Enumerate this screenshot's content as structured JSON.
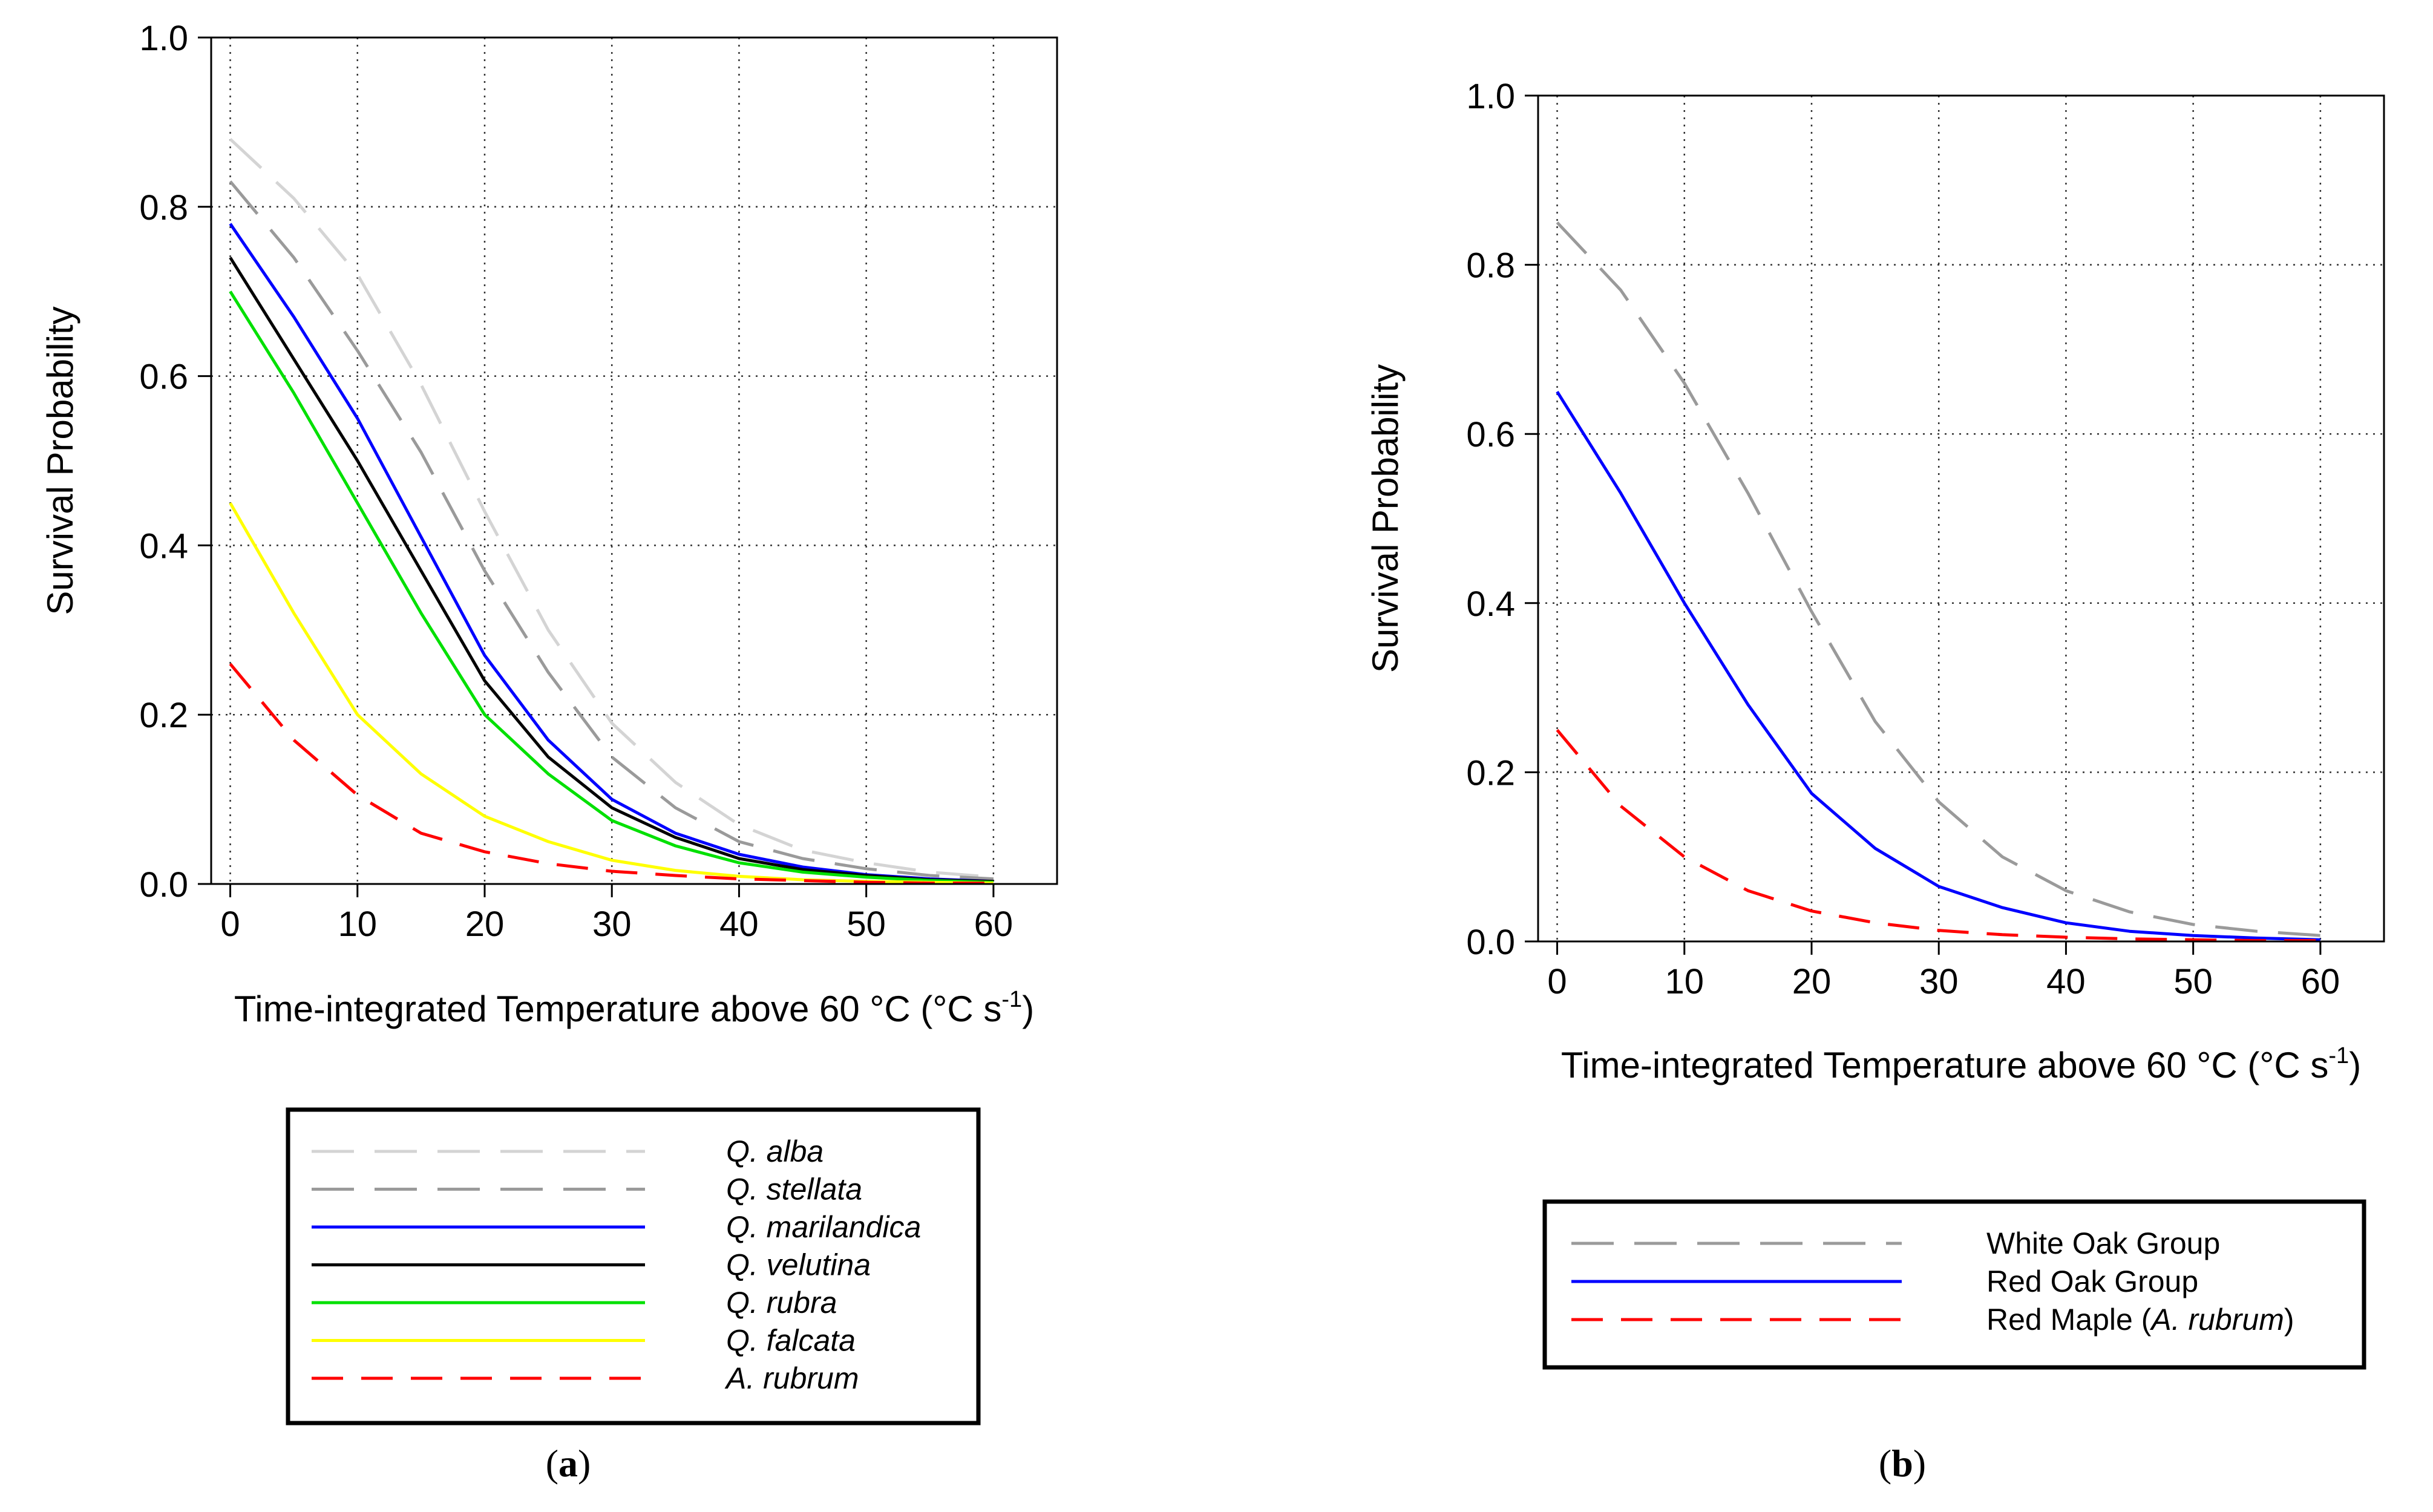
{
  "chart_data": [
    {
      "panel": "a",
      "panel_label": {
        "open": "(",
        "letter": "a",
        "close": ")"
      },
      "type": "line",
      "title": "",
      "xlabel": "Time-integrated Temperature above 60 °C (°C s",
      "xlabel_sup": "-1",
      "xlabel_close": ")",
      "ylabel": "Survival Probability",
      "xlim": [
        -1.5,
        65
      ],
      "ylim": [
        0,
        1
      ],
      "xticks": [
        "0",
        "10",
        "20",
        "30",
        "40",
        "50",
        "60"
      ],
      "yticks": [
        "0.0",
        "0.2",
        "0.4",
        "0.6",
        "0.8",
        "1.0"
      ],
      "grid": true,
      "legend_position": "below",
      "x": [
        0,
        5,
        10,
        15,
        20,
        25,
        30,
        35,
        40,
        45,
        50,
        55,
        60
      ],
      "series": [
        {
          "name": "Q. alba",
          "color": "#d4d4d4",
          "dash": "long-dash",
          "values": [
            0.88,
            0.81,
            0.72,
            0.59,
            0.44,
            0.3,
            0.19,
            0.12,
            0.07,
            0.04,
            0.025,
            0.014,
            0.008
          ]
        },
        {
          "name": "Q. stellata",
          "color": "#9a9a9a",
          "dash": "long-dash",
          "values": [
            0.83,
            0.74,
            0.63,
            0.51,
            0.37,
            0.25,
            0.15,
            0.09,
            0.05,
            0.03,
            0.018,
            0.01,
            0.006
          ]
        },
        {
          "name": "Q. marilandica",
          "color": "#0000ff",
          "dash": "solid",
          "values": [
            0.78,
            0.67,
            0.55,
            0.41,
            0.27,
            0.17,
            0.1,
            0.06,
            0.035,
            0.02,
            0.011,
            0.006,
            0.003
          ]
        },
        {
          "name": "Q. velutina",
          "color": "#000000",
          "dash": "solid",
          "values": [
            0.74,
            0.62,
            0.5,
            0.37,
            0.24,
            0.15,
            0.09,
            0.055,
            0.03,
            0.017,
            0.01,
            0.005,
            0.003
          ]
        },
        {
          "name": "Q. rubra",
          "color": "#00e000",
          "dash": "solid",
          "values": [
            0.7,
            0.58,
            0.45,
            0.32,
            0.2,
            0.13,
            0.075,
            0.045,
            0.025,
            0.014,
            0.008,
            0.004,
            0.002
          ]
        },
        {
          "name": "Q. falcata",
          "color": "#ffff00",
          "dash": "solid",
          "values": [
            0.45,
            0.32,
            0.2,
            0.13,
            0.08,
            0.05,
            0.028,
            0.016,
            0.009,
            0.005,
            0.003,
            0.002,
            0.001
          ]
        },
        {
          "name": "A. rubrum",
          "color": "#ff0000",
          "dash": "dash",
          "values": [
            0.26,
            0.17,
            0.105,
            0.06,
            0.038,
            0.024,
            0.015,
            0.01,
            0.006,
            0.004,
            0.002,
            0.001,
            0.001
          ]
        }
      ]
    },
    {
      "panel": "b",
      "panel_label": {
        "open": "(",
        "letter": "b",
        "close": ")"
      },
      "type": "line",
      "title": "",
      "xlabel": "Time-integrated Temperature above 60 °C (°C s",
      "xlabel_sup": "-1",
      "xlabel_close": ")",
      "ylabel": "Survival Probability",
      "xlim": [
        -1.5,
        65
      ],
      "ylim": [
        0,
        1
      ],
      "xticks": [
        "0",
        "10",
        "20",
        "30",
        "40",
        "50",
        "60"
      ],
      "yticks": [
        "0.0",
        "0.2",
        "0.4",
        "0.6",
        "0.8",
        "1.0"
      ],
      "grid": true,
      "legend_position": "below",
      "x": [
        0,
        5,
        10,
        15,
        20,
        25,
        30,
        35,
        40,
        45,
        50,
        55,
        60
      ],
      "series": [
        {
          "name": "White Oak Group",
          "color": "#9a9a9a",
          "dash": "long-dash",
          "values": [
            0.85,
            0.77,
            0.66,
            0.53,
            0.39,
            0.26,
            0.165,
            0.1,
            0.06,
            0.035,
            0.02,
            0.012,
            0.007
          ]
        },
        {
          "name": "Red Oak Group",
          "color": "#0000ff",
          "dash": "solid",
          "values": [
            0.65,
            0.53,
            0.4,
            0.28,
            0.175,
            0.11,
            0.065,
            0.04,
            0.022,
            0.012,
            0.007,
            0.004,
            0.002
          ]
        },
        {
          "name": "Red Maple (A. rubrum)",
          "name_parts": [
            "Red Maple (",
            "A. rubrum",
            ")"
          ],
          "color": "#ff0000",
          "dash": "dash",
          "values": [
            0.25,
            0.16,
            0.1,
            0.06,
            0.036,
            0.022,
            0.013,
            0.008,
            0.005,
            0.003,
            0.002,
            0.001,
            0.001
          ]
        }
      ]
    }
  ]
}
